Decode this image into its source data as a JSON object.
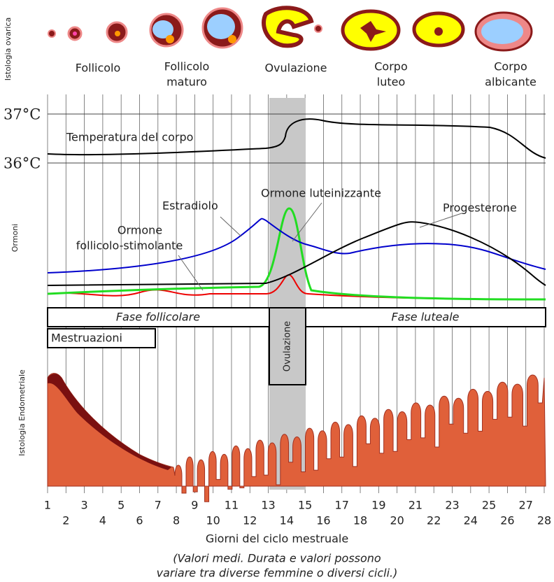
{
  "sections": {
    "ovarian_histology": "Istologia ovarica",
    "hormones": "Ormoni",
    "endometrial_histology": "Istologia Endometriale"
  },
  "ovary_stages": [
    [
      "Follicolo"
    ],
    [
      "Follicolo",
      "maturo"
    ],
    [
      "Ovulazione"
    ],
    [
      "Corpo",
      "luteo"
    ],
    [
      "Corpo",
      "albicante"
    ]
  ],
  "temperature": {
    "high": "37°C",
    "low": "36°C",
    "label": "Temperatura del corpo"
  },
  "hormones": {
    "estradiol": "Estradiolo",
    "lh": "Ormone luteinizzante",
    "progesterone": "Progesterone",
    "fsh": [
      "Ormone",
      "follicolo-stimolante"
    ]
  },
  "phases": {
    "follicular": "Fase follicolare",
    "luteal": "Fase luteale",
    "menstruation": "Mestruazioni",
    "ovulation": "Ovulazione"
  },
  "days": [
    1,
    2,
    3,
    4,
    5,
    6,
    7,
    8,
    9,
    10,
    11,
    12,
    13,
    14,
    15,
    16,
    17,
    18,
    19,
    20,
    21,
    22,
    23,
    24,
    25,
    26,
    27,
    28
  ],
  "x_axis_title": "Giorni del ciclo mestruale",
  "note": [
    "(Valori medi. Durata e valori possono",
    "variare tra diverse femmine o diversi cicli.)"
  ]
}
